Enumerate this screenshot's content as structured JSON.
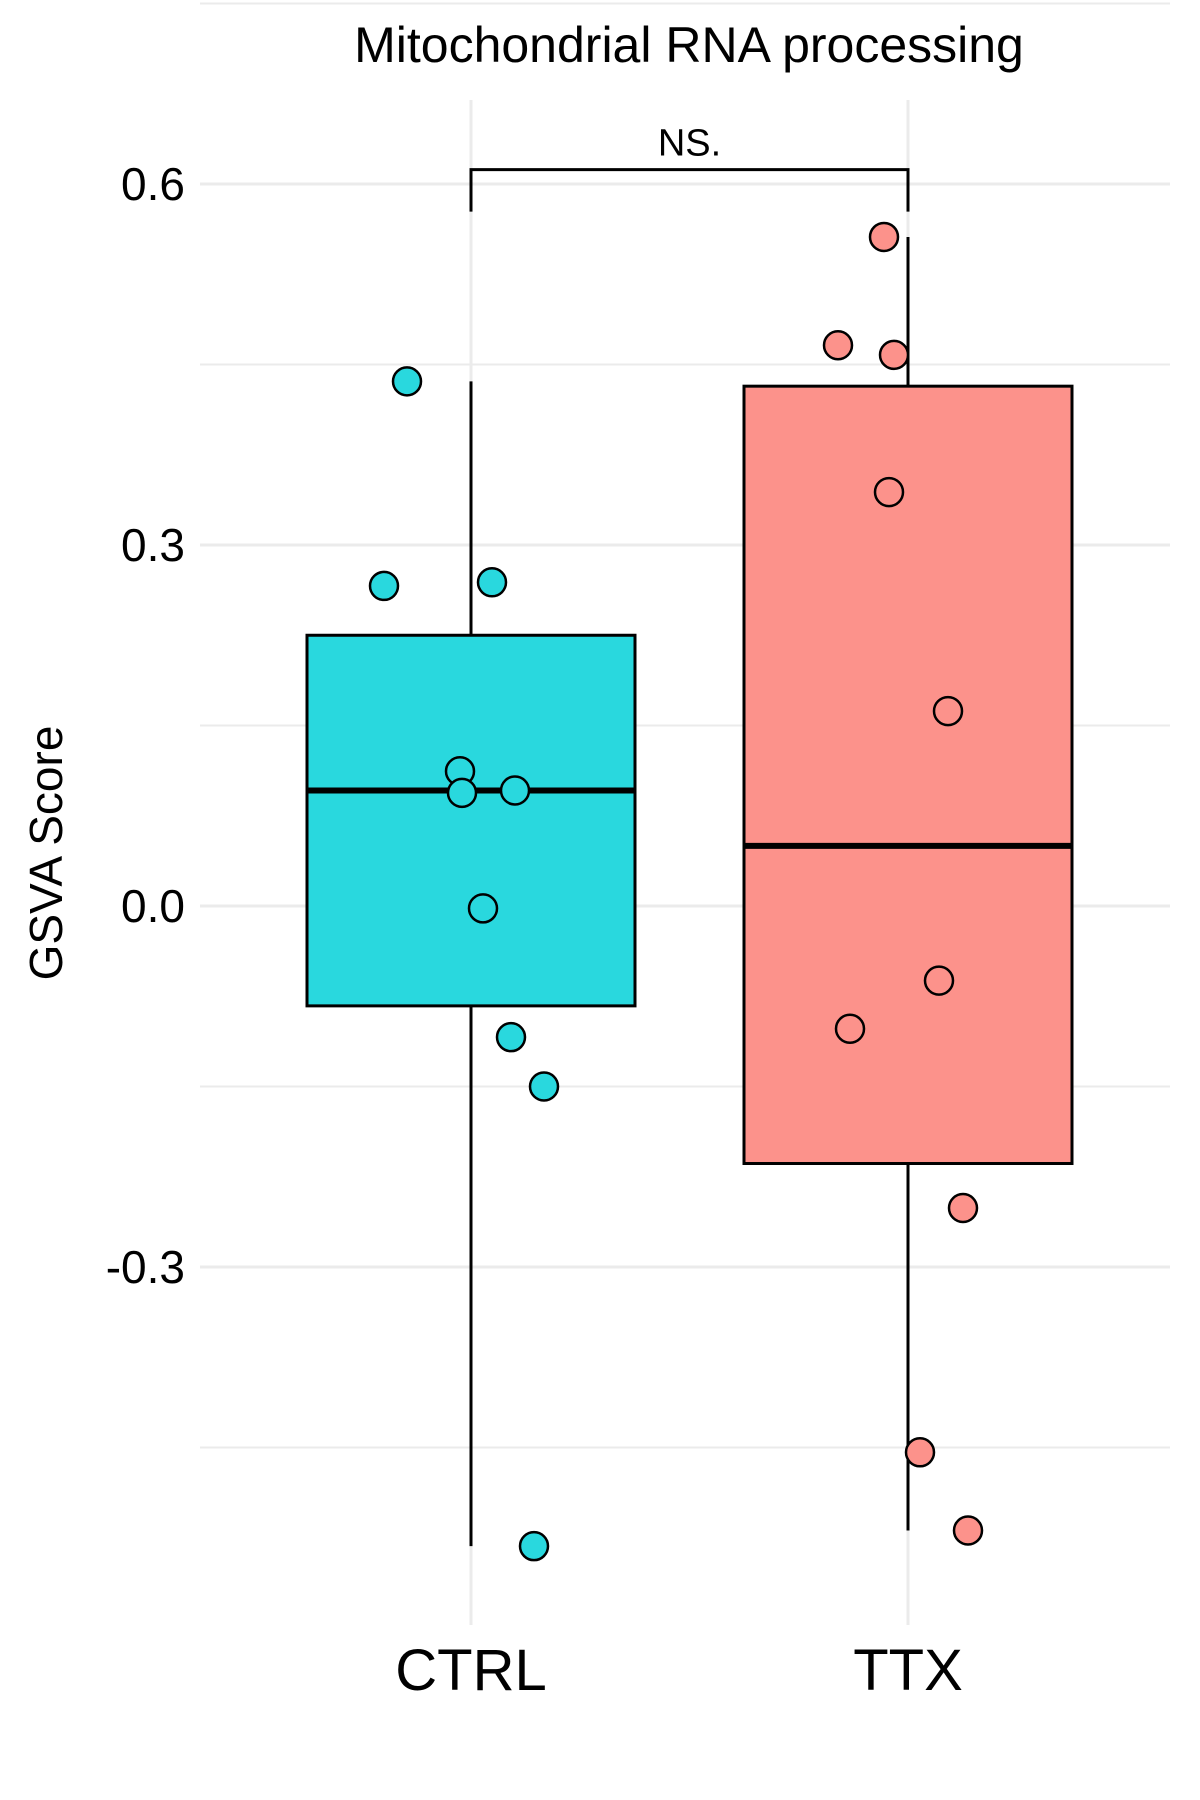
{
  "chart_data": {
    "type": "box",
    "title": "Mitochondrial RNA processing",
    "xlabel": "",
    "ylabel": "GSVA Score",
    "categories": [
      "CTRL",
      "TTX"
    ],
    "colors": {
      "CTRL": "#29d8de",
      "TTX": "#fc928b"
    },
    "ylim": [
      -0.58,
      0.67
    ],
    "yticks": [
      -0.3,
      0.0,
      0.3,
      0.6
    ],
    "ytick_labels": [
      "-0.3",
      "0.0",
      "0.3",
      "0.6"
    ],
    "grid": true,
    "legend": "none",
    "boxes": [
      {
        "category": "CTRL",
        "min": -0.532,
        "q1": -0.083,
        "median": 0.096,
        "q3": 0.225,
        "max": 0.436
      },
      {
        "category": "TTX",
        "min": -0.519,
        "q1": -0.214,
        "median": 0.05,
        "q3": 0.432,
        "max": 0.556
      }
    ],
    "points": [
      {
        "category": "CTRL",
        "values": [
          0.436,
          0.266,
          0.269,
          0.112,
          0.094,
          0.096,
          -0.002,
          -0.109,
          -0.15,
          -0.532
        ]
      },
      {
        "category": "TTX",
        "values": [
          0.556,
          0.466,
          0.458,
          0.344,
          0.162,
          -0.062,
          -0.102,
          -0.251,
          -0.454,
          -0.519
        ]
      }
    ],
    "significance": {
      "pair": [
        "CTRL",
        "TTX"
      ],
      "label": "NS.",
      "y": 0.612
    }
  }
}
